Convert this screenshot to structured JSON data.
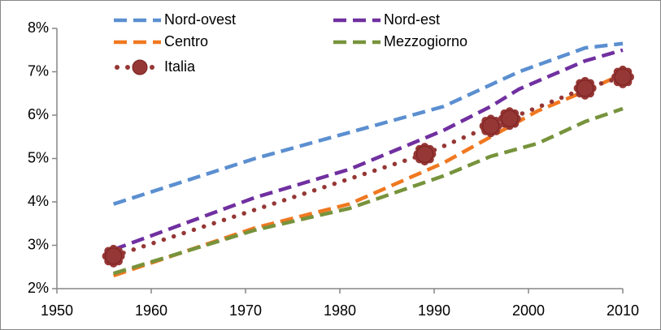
{
  "chart_data": {
    "type": "line",
    "xlim": [
      1950,
      2010
    ],
    "xticks": [
      1950,
      1960,
      1970,
      1980,
      1990,
      2000,
      2010
    ],
    "ylim": [
      2,
      8
    ],
    "yticks": [
      {
        "value": 2,
        "label": "2%"
      },
      {
        "value": 3,
        "label": "3%"
      },
      {
        "value": 4,
        "label": "4%"
      },
      {
        "value": 5,
        "label": "5%"
      },
      {
        "value": 6,
        "label": "6%"
      },
      {
        "value": 7,
        "label": "7%"
      },
      {
        "value": 8,
        "label": "8%"
      }
    ],
    "grid": false,
    "legend": "top",
    "series": [
      {
        "name": "Nord-ovest",
        "color": "#5b8fd0",
        "x": [
          1956,
          1971,
          1981,
          1991,
          1996,
          1999,
          2006,
          2010
        ],
        "values": [
          3.95,
          5.0,
          5.6,
          6.2,
          6.7,
          7.0,
          7.55,
          7.65
        ]
      },
      {
        "name": "Nord-est",
        "color": "#7030a0",
        "x": [
          1956,
          1971,
          1981,
          1991,
          1996,
          1999,
          2006,
          2010
        ],
        "values": [
          2.9,
          4.1,
          4.75,
          5.65,
          6.2,
          6.6,
          7.25,
          7.5
        ]
      },
      {
        "name": "Centro",
        "color": "#f07820",
        "x": [
          1956,
          1971,
          1981,
          1991,
          1996,
          2001,
          2006,
          2010
        ],
        "values": [
          2.3,
          3.4,
          3.95,
          4.9,
          5.5,
          6.1,
          6.55,
          6.95
        ]
      },
      {
        "name": "Mezzogiorno",
        "color": "#77933c",
        "x": [
          1956,
          1971,
          1981,
          1991,
          1996,
          2001,
          2006,
          2010
        ],
        "values": [
          2.35,
          3.35,
          3.85,
          4.6,
          5.05,
          5.35,
          5.85,
          6.15
        ]
      },
      {
        "name": "Italia",
        "color": "#953735",
        "x": [
          1956,
          1989,
          1996,
          1998,
          2006,
          2010
        ],
        "values": [
          2.75,
          5.1,
          5.75,
          5.92,
          6.62,
          6.88
        ]
      }
    ]
  }
}
